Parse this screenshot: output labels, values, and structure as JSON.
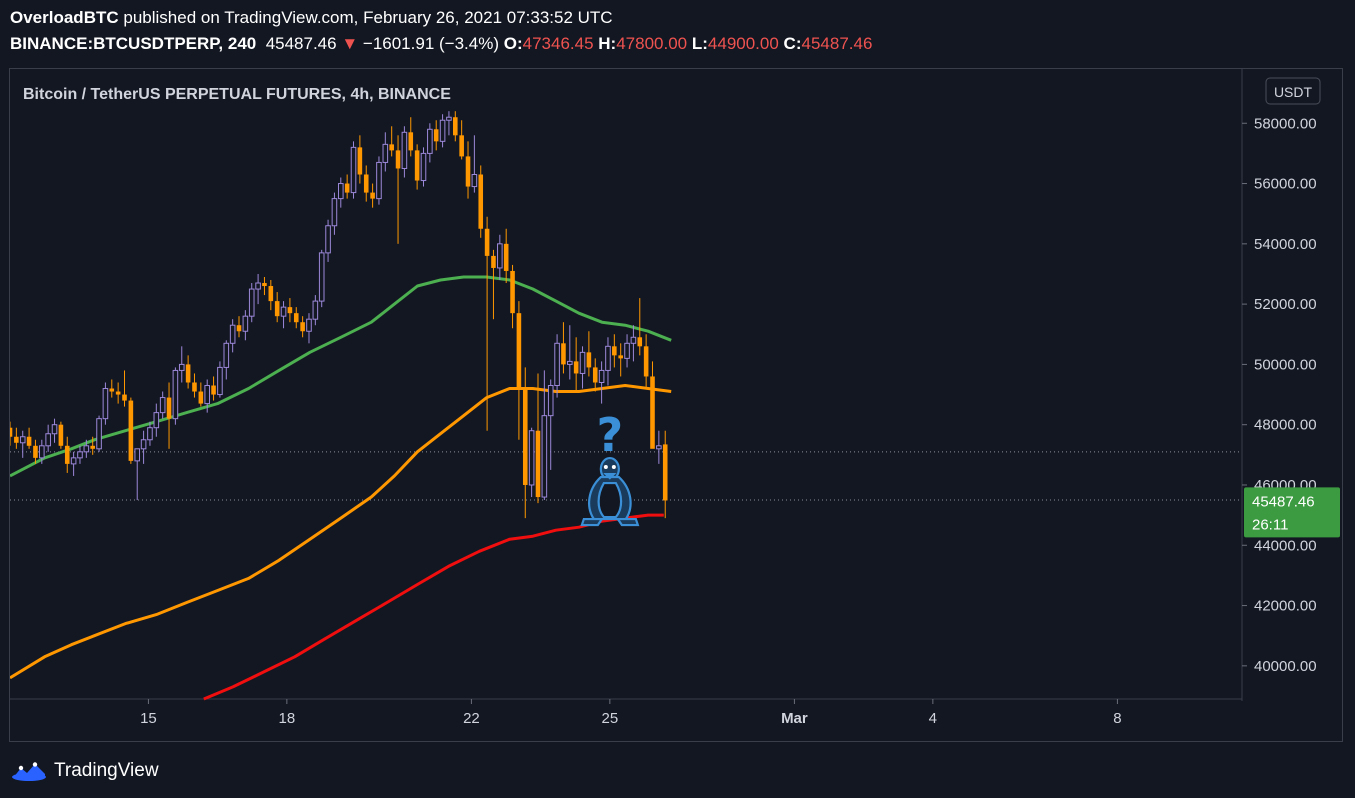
{
  "header": {
    "author": "OverloadBTC",
    "published_text": "published on TradingView.com, February 26, 2021 07:33:52 UTC",
    "symbol": "BINANCE:BTCUSDTPERP, 240",
    "last": "45487.46",
    "change": "−1601.91 (−3.4%)",
    "open_label": "O:",
    "open": "47346.45",
    "high_label": "H:",
    "high": "47800.00",
    "low_label": "L:",
    "low": "44900.00",
    "close_label": "C:",
    "close": "45487.46"
  },
  "footer": {
    "brand": "TradingView"
  },
  "colors": {
    "bg": "#131722",
    "bull": "#9c88d9",
    "bear": "#ff9800",
    "ma_fast": "#4caf50",
    "ma_mid": "#ff9800",
    "ma_slow": "#f00e0e",
    "price_tag": "#3c9a40",
    "annotation": "#3a8fd6"
  },
  "chart_data": {
    "type": "candlestick",
    "title": "Bitcoin / TetherUS PERPETUAL FUTURES, 4h, BINANCE",
    "currency": "USDT",
    "ylim": [
      38900,
      59800
    ],
    "y_ticks": [
      "58000.00",
      "56000.00",
      "54000.00",
      "52000.00",
      "50000.00",
      "48000.00",
      "46000.00",
      "44000.00",
      "42000.00",
      "40000.00"
    ],
    "y_tick_values": [
      58000,
      56000,
      54000,
      52000,
      50000,
      48000,
      46000,
      44000,
      42000,
      40000
    ],
    "x_ticks": [
      "15",
      "18",
      "22",
      "25",
      "Mar",
      "4",
      "8"
    ],
    "x_tick_days": [
      15,
      18,
      22,
      25,
      29,
      32,
      36
    ],
    "x_day_range": [
      12.0,
      38.7
    ],
    "x_days_note_omitted": true,
    "last_price_label": "45487.46",
    "countdown": "26:11",
    "reference_levels": [
      47100,
      45500
    ],
    "annotation": {
      "text": "?",
      "icon": "penguin-icon"
    },
    "candles": [
      [
        47900,
        48100,
        47300,
        47600
      ],
      [
        47600,
        47900,
        47200,
        47400
      ],
      [
        47400,
        47800,
        46900,
        47600
      ],
      [
        47600,
        47900,
        47200,
        47300
      ],
      [
        47300,
        47500,
        46700,
        46900
      ],
      [
        46900,
        47500,
        46700,
        47300
      ],
      [
        47300,
        48000,
        47100,
        47700
      ],
      [
        47700,
        48200,
        47400,
        48000
      ],
      [
        48000,
        48100,
        47200,
        47300
      ],
      [
        47300,
        47600,
        46400,
        46700
      ],
      [
        46700,
        47100,
        46300,
        46900
      ],
      [
        46900,
        47300,
        46700,
        47100
      ],
      [
        47100,
        47500,
        46900,
        47300
      ],
      [
        47300,
        47600,
        47000,
        47200
      ],
      [
        47200,
        48300,
        47100,
        48200
      ],
      [
        48200,
        49400,
        48000,
        49200
      ],
      [
        49200,
        49500,
        48900,
        49100
      ],
      [
        49100,
        49400,
        48700,
        49000
      ],
      [
        49000,
        49800,
        48600,
        48800
      ],
      [
        48800,
        48900,
        46700,
        46800
      ],
      [
        46800,
        47100,
        45500,
        47200
      ],
      [
        47200,
        47800,
        46700,
        47500
      ],
      [
        47500,
        48100,
        47300,
        47900
      ],
      [
        47900,
        48700,
        47600,
        48400
      ],
      [
        48400,
        49100,
        48200,
        48900
      ],
      [
        48900,
        49400,
        47200,
        48200
      ],
      [
        48200,
        49900,
        48000,
        49800
      ],
      [
        49800,
        50600,
        49400,
        50000
      ],
      [
        50000,
        50300,
        49200,
        49400
      ],
      [
        49400,
        49700,
        48900,
        49100
      ],
      [
        49100,
        49400,
        48600,
        48700
      ],
      [
        48700,
        49500,
        48400,
        49300
      ],
      [
        49300,
        49600,
        48800,
        49000
      ],
      [
        49000,
        50100,
        48900,
        49900
      ],
      [
        49900,
        50800,
        49500,
        50700
      ],
      [
        50700,
        51500,
        50400,
        51300
      ],
      [
        51300,
        51600,
        50900,
        51100
      ],
      [
        51100,
        51800,
        50800,
        51600
      ],
      [
        51600,
        52700,
        51400,
        52500
      ],
      [
        52500,
        53000,
        52000,
        52700
      ],
      [
        52700,
        52900,
        52300,
        52600
      ],
      [
        52600,
        52800,
        51800,
        52100
      ],
      [
        52100,
        52400,
        51400,
        51600
      ],
      [
        51600,
        52100,
        51200,
        51900
      ],
      [
        51900,
        52200,
        51400,
        51700
      ],
      [
        51700,
        51900,
        51200,
        51400
      ],
      [
        51400,
        51600,
        50900,
        51100
      ],
      [
        51100,
        51700,
        50700,
        51500
      ],
      [
        51500,
        52300,
        51300,
        52100
      ],
      [
        52100,
        53800,
        51900,
        53700
      ],
      [
        53700,
        54800,
        53400,
        54600
      ],
      [
        54600,
        55700,
        54300,
        55500
      ],
      [
        55500,
        56200,
        55200,
        56000
      ],
      [
        56000,
        56300,
        55500,
        55700
      ],
      [
        55700,
        57400,
        55500,
        57200
      ],
      [
        57200,
        57600,
        56000,
        56300
      ],
      [
        56300,
        56600,
        55400,
        55700
      ],
      [
        55700,
        56000,
        55200,
        55500
      ],
      [
        55500,
        56900,
        55300,
        56700
      ],
      [
        56700,
        57700,
        56400,
        57300
      ],
      [
        57300,
        57900,
        56900,
        57100
      ],
      [
        57100,
        57600,
        54000,
        56500
      ],
      [
        56500,
        57900,
        56200,
        57700
      ],
      [
        57700,
        58200,
        56900,
        57100
      ],
      [
        57100,
        57300,
        55800,
        56100
      ],
      [
        56100,
        57200,
        55900,
        57000
      ],
      [
        57000,
        58000,
        56700,
        57800
      ],
      [
        57800,
        58100,
        57100,
        57400
      ],
      [
        57400,
        58300,
        57200,
        58100
      ],
      [
        58100,
        58400,
        57600,
        58200
      ],
      [
        58200,
        58400,
        57400,
        57600
      ],
      [
        57600,
        58100,
        56800,
        56900
      ],
      [
        56900,
        57400,
        55500,
        55900
      ],
      [
        55900,
        57600,
        55700,
        56300
      ],
      [
        56300,
        56600,
        54200,
        54500
      ],
      [
        54500,
        54900,
        47800,
        53600
      ],
      [
        53600,
        53800,
        51500,
        53200
      ],
      [
        53200,
        54300,
        52800,
        54000
      ],
      [
        54000,
        54500,
        52700,
        53100
      ],
      [
        53100,
        53300,
        51200,
        51700
      ],
      [
        51700,
        52100,
        47500,
        49200
      ],
      [
        49200,
        49900,
        44900,
        46000
      ],
      [
        46000,
        47900,
        45600,
        47800
      ],
      [
        47800,
        49700,
        45400,
        45600
      ],
      [
        45600,
        49800,
        45500,
        48300
      ],
      [
        48300,
        49500,
        46500,
        49300
      ],
      [
        49300,
        51000,
        48900,
        50700
      ],
      [
        50700,
        51400,
        49700,
        50000
      ],
      [
        50000,
        51300,
        49500,
        50100
      ],
      [
        50100,
        50900,
        49100,
        49700
      ],
      [
        49700,
        50600,
        49200,
        50400
      ],
      [
        50400,
        51100,
        49600,
        49900
      ],
      [
        49900,
        50200,
        49100,
        49400
      ],
      [
        49400,
        50100,
        48700,
        49800
      ],
      [
        49800,
        50900,
        49300,
        50600
      ],
      [
        50600,
        51000,
        49900,
        50300
      ],
      [
        50300,
        50700,
        49600,
        50200
      ],
      [
        50200,
        51000,
        49900,
        50700
      ],
      [
        50700,
        51300,
        50100,
        50900
      ],
      [
        50900,
        52200,
        50300,
        50600
      ],
      [
        50600,
        51000,
        49200,
        49600
      ],
      [
        49600,
        50100,
        47300,
        47200
      ],
      [
        47200,
        47800,
        46700,
        47300
      ],
      [
        47346,
        47800,
        44900,
        45487
      ]
    ],
    "series": [
      {
        "name": "MA fast",
        "points": [
          [
            12.0,
            46300
          ],
          [
            12.75,
            46900
          ],
          [
            13.33,
            47200
          ],
          [
            13.83,
            47500
          ],
          [
            14.5,
            47800
          ],
          [
            15.17,
            48100
          ],
          [
            15.83,
            48400
          ],
          [
            16.5,
            48700
          ],
          [
            17.17,
            49200
          ],
          [
            17.83,
            49800
          ],
          [
            18.5,
            50400
          ],
          [
            19.17,
            50900
          ],
          [
            19.83,
            51400
          ],
          [
            20.33,
            52000
          ],
          [
            20.83,
            52600
          ],
          [
            21.33,
            52800
          ],
          [
            21.83,
            52900
          ],
          [
            22.33,
            52900
          ],
          [
            22.83,
            52800
          ],
          [
            23.33,
            52500
          ],
          [
            23.83,
            52100
          ],
          [
            24.33,
            51700
          ],
          [
            24.83,
            51400
          ],
          [
            25.33,
            51300
          ],
          [
            25.83,
            51100
          ],
          [
            26.33,
            50800
          ]
        ]
      },
      {
        "name": "MA mid",
        "points": [
          [
            12.0,
            39600
          ],
          [
            12.75,
            40300
          ],
          [
            13.33,
            40700
          ],
          [
            13.83,
            41000
          ],
          [
            14.5,
            41400
          ],
          [
            15.17,
            41700
          ],
          [
            15.83,
            42100
          ],
          [
            16.5,
            42500
          ],
          [
            17.17,
            42900
          ],
          [
            17.83,
            43500
          ],
          [
            18.5,
            44200
          ],
          [
            19.17,
            44900
          ],
          [
            19.83,
            45600
          ],
          [
            20.33,
            46300
          ],
          [
            20.83,
            47100
          ],
          [
            21.33,
            47700
          ],
          [
            21.83,
            48300
          ],
          [
            22.33,
            48900
          ],
          [
            22.83,
            49200
          ],
          [
            23.33,
            49200
          ],
          [
            23.83,
            49100
          ],
          [
            24.33,
            49100
          ],
          [
            24.83,
            49200
          ],
          [
            25.33,
            49300
          ],
          [
            25.83,
            49200
          ],
          [
            26.33,
            49100
          ]
        ]
      },
      {
        "name": "MA slow",
        "points": [
          [
            16.2,
            38900
          ],
          [
            16.83,
            39300
          ],
          [
            17.5,
            39800
          ],
          [
            18.17,
            40300
          ],
          [
            18.83,
            40900
          ],
          [
            19.5,
            41500
          ],
          [
            20.17,
            42100
          ],
          [
            20.83,
            42700
          ],
          [
            21.5,
            43300
          ],
          [
            22.17,
            43800
          ],
          [
            22.83,
            44200
          ],
          [
            23.33,
            44300
          ],
          [
            23.83,
            44500
          ],
          [
            24.33,
            44600
          ],
          [
            24.83,
            44800
          ],
          [
            25.33,
            44900
          ],
          [
            25.83,
            45000
          ],
          [
            26.17,
            45000
          ]
        ]
      }
    ]
  }
}
